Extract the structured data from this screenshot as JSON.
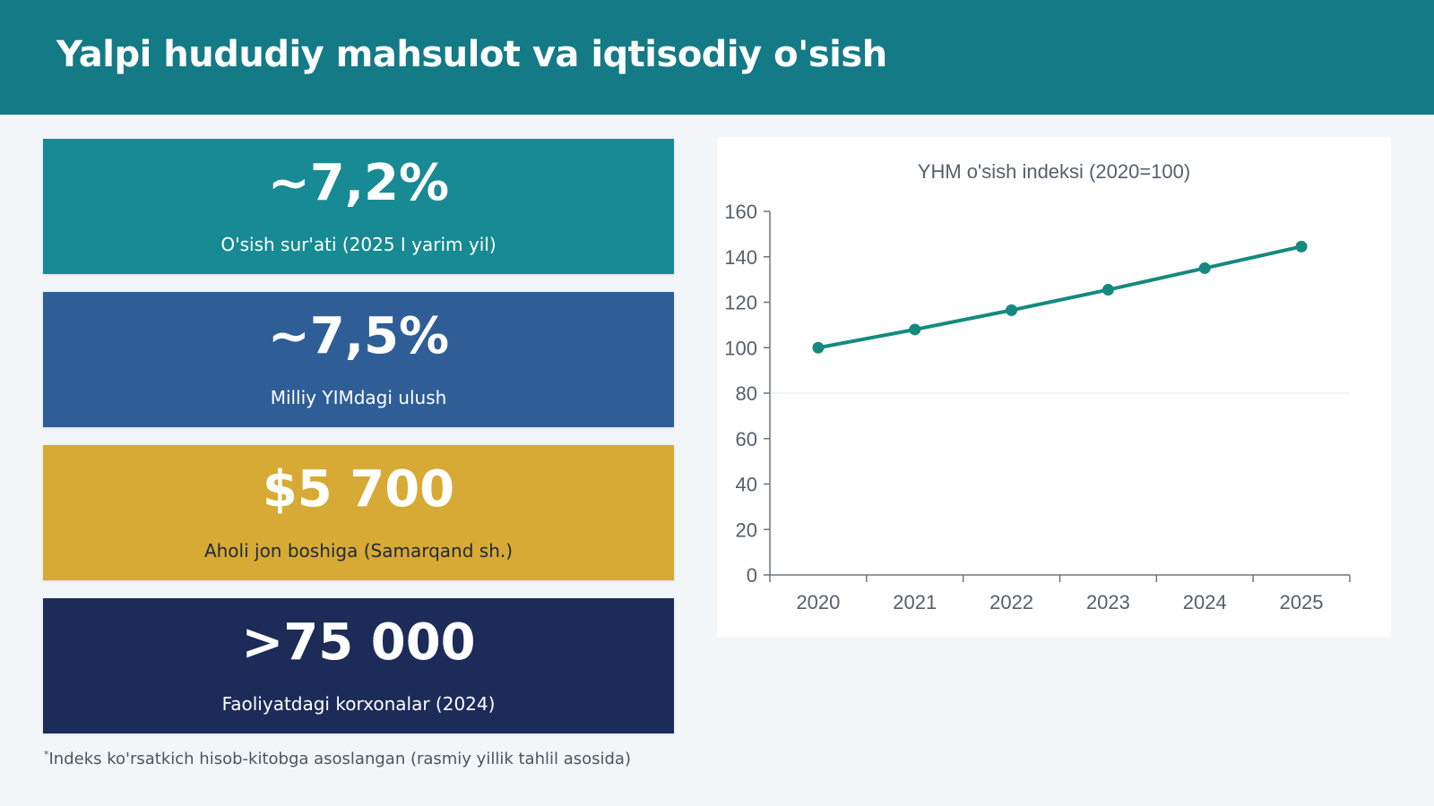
{
  "header": {
    "title": "Yalpi hududiy mahsulot va iqtisodiy o'sish"
  },
  "cards": [
    {
      "value": "~7,2%",
      "label": "O'sish sur'ati (2025 I yarim yil)",
      "color": "#178a93"
    },
    {
      "value": "~7,5%",
      "label": "Milliy YIMdagi ulush",
      "color": "#2f5e96"
    },
    {
      "value": "$5 700",
      "label": "Aholi jon boshiga (Samarqand sh.)",
      "color": "#d7aa35"
    },
    {
      "value": ">75 000",
      "label": "Faoliyatdagi korxonalar (2024)",
      "color": "#1c2b58"
    }
  ],
  "footnote": {
    "mark": "*",
    "text": "Indeks ko'rsatkich hisob-kitobga asoslangan (rasmiy yillik tahlil asosida)"
  },
  "chart_data": {
    "type": "line",
    "title": "YHM o'sish indeksi (2020=100)",
    "x": [
      "2020",
      "2021",
      "2022",
      "2023",
      "2024",
      "2025"
    ],
    "series": [
      {
        "values": [
          100,
          108,
          116.5,
          125.5,
          135,
          144.5
        ],
        "color": "#148a7e"
      }
    ],
    "ylim": [
      0,
      160
    ],
    "yticks": [
      0,
      20,
      40,
      60,
      80,
      100,
      120,
      140,
      160
    ],
    "gridlines": [
      80
    ]
  }
}
